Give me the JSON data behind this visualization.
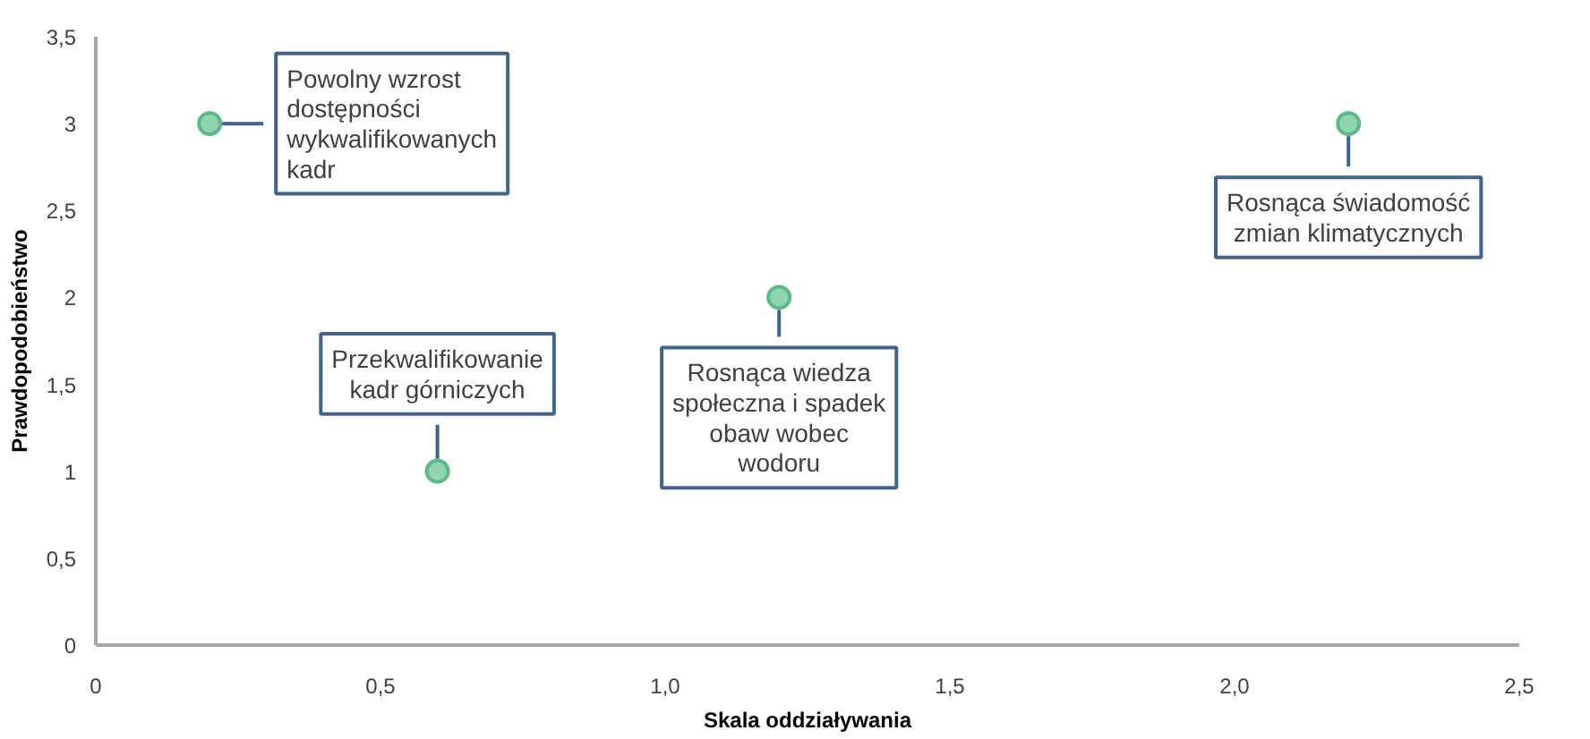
{
  "chart_data": {
    "type": "scatter",
    "xlabel": "Skala oddziaływania",
    "ylabel": "Prawdopodobieństwo",
    "x": [
      0.2,
      0.6,
      1.2,
      2.2
    ],
    "values": [
      3,
      1,
      2,
      3
    ],
    "color": "#8fd6ae",
    "marker": "circle",
    "grid": false,
    "xlim": [
      0,
      2.5
    ],
    "ylim": [
      0,
      3.5
    ],
    "xticks": [
      0,
      {
        "value": 0.5,
        "label": "0,5"
      },
      {
        "value": 1,
        "label": "1,0"
      },
      {
        "value": 1.5,
        "label": "1,5"
      },
      {
        "value": 2,
        "label": "2,0"
      },
      {
        "value": 2.5,
        "label": "2,5"
      }
    ],
    "yticks": [
      0,
      {
        "value": 0.5,
        "label": "0,5"
      },
      1,
      {
        "value": 1.5,
        "label": "1,5"
      },
      2,
      {
        "value": 2.5,
        "label": "2,5"
      },
      3,
      {
        "value": 3.5,
        "label": "3,5"
      }
    ],
    "annotations": [
      {
        "text": "Powolny wzrost\ndostępności\nwykwalifikowanych\nkadr",
        "x": 0.2,
        "y": 3
      },
      {
        "text": "Przekwalifikowanie\nkadr górniczych",
        "x": 0.6,
        "y": 1
      },
      {
        "text": "Rosnąca wiedza\nspołeczna i spadek\nobaw wobec\nwodoru",
        "x": 1.2,
        "y": 2
      },
      {
        "text": "Rosnąca świadomość\nzmian klimatycznych",
        "x": 2.2,
        "y": 3
      }
    ]
  }
}
